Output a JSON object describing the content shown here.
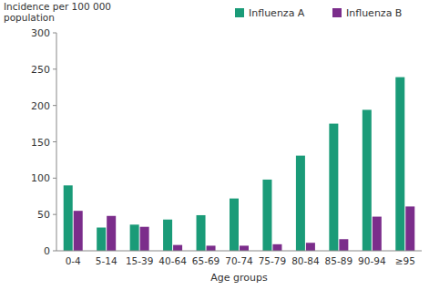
{
  "chart_data": {
    "type": "bar",
    "y_label": "Incidence per 100 000 population",
    "x_label": "Age groups",
    "categories": [
      "0-4",
      "5-14",
      "15-39",
      "40-64",
      "65-69",
      "70-74",
      "75-79",
      "80-84",
      "85-89",
      "90-94",
      "≥95"
    ],
    "series": [
      {
        "name": "Influenza A",
        "color": "#1a9b78",
        "values": [
          90,
          32,
          36,
          43,
          49,
          72,
          98,
          131,
          175,
          194,
          239
        ]
      },
      {
        "name": "Influenza B",
        "color": "#7b2d8b",
        "values": [
          55,
          48,
          33,
          8,
          7,
          7,
          9,
          11,
          16,
          47,
          61
        ]
      }
    ],
    "ylim": [
      0,
      300
    ],
    "yticks": [
      0,
      50,
      100,
      150,
      200,
      250,
      300
    ],
    "grid": false,
    "legend": "top-right"
  }
}
